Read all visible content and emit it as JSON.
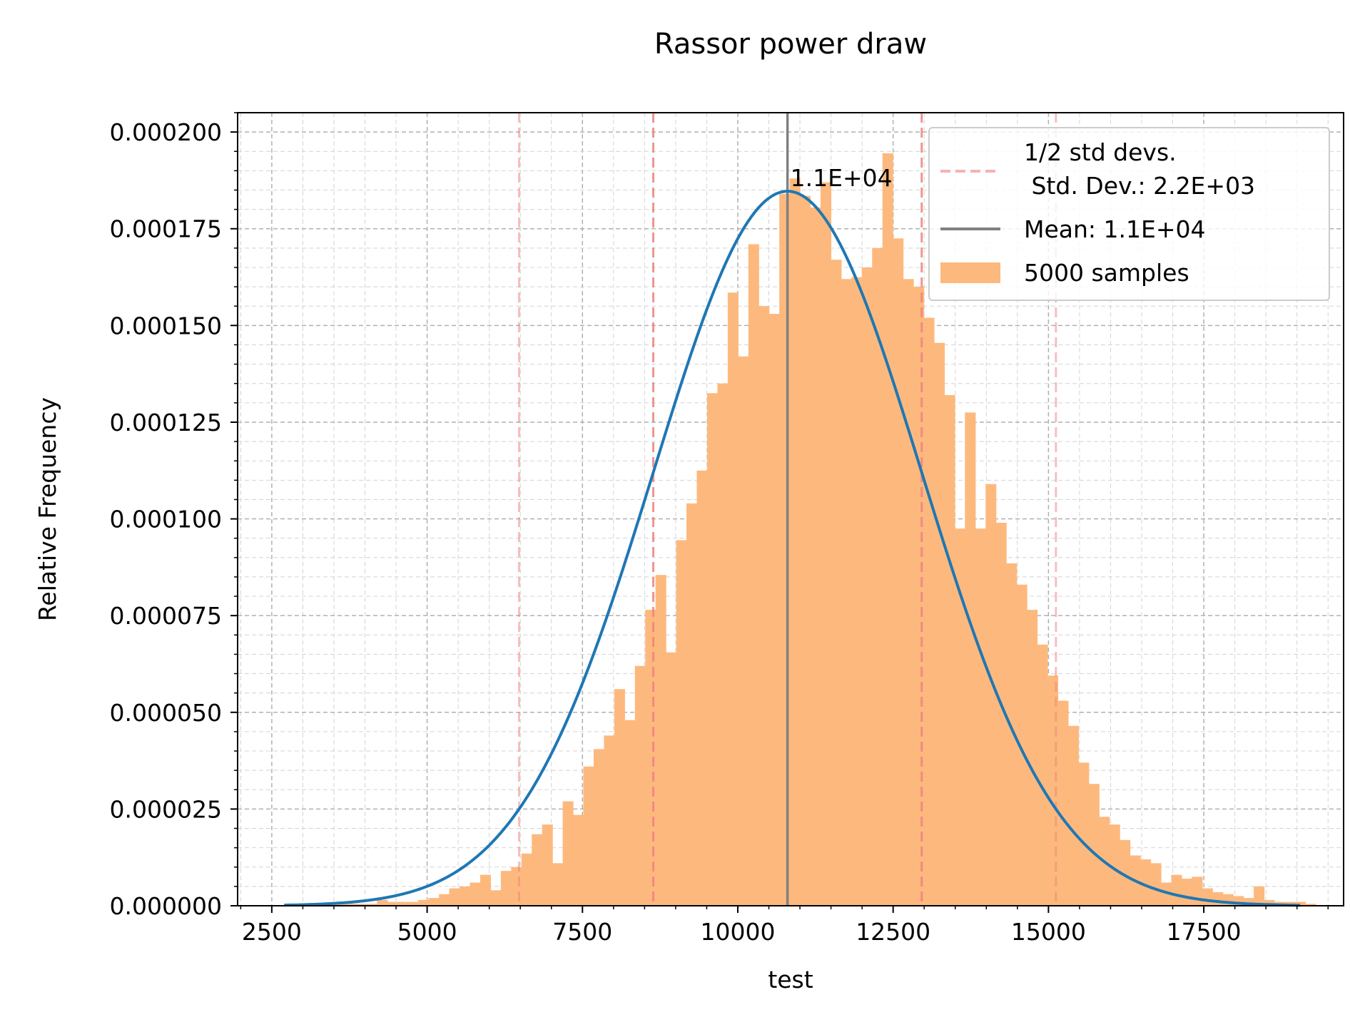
{
  "chart_data": {
    "type": "bar",
    "title": "Rassor  power draw",
    "xlabel": "test",
    "ylabel": "Relative Frequency",
    "xlim": [
      1950,
      19750
    ],
    "ylim": [
      0,
      0.000205
    ],
    "x_ticks": [
      2500,
      5000,
      7500,
      10000,
      12500,
      15000,
      17500
    ],
    "x_tick_labels": [
      "2500",
      "5000",
      "7500",
      "10000",
      "12500",
      "15000",
      "17500"
    ],
    "y_ticks": [
      0,
      2.5e-05,
      5e-05,
      7.5e-05,
      0.0001,
      0.000125,
      0.00015,
      0.000175,
      0.0002
    ],
    "y_tick_labels": [
      "0.000000",
      "0.000025",
      "0.000050",
      "0.000075",
      "0.000100",
      "0.000125",
      "0.000150",
      "0.000175",
      "0.000200"
    ],
    "grid": true,
    "legend_position": "top-right",
    "colors": {
      "histogram": "#fdb97d",
      "normal_fit": "#1f77b4",
      "mean_line": "#808080",
      "std_dev_lines": "#f08080"
    },
    "histogram": {
      "name": "5000 samples",
      "bin_start": 2700,
      "bin_width": 166,
      "values": [
        5e-07,
        5e-07,
        5e-07,
        5e-07,
        5e-07,
        5e-07,
        5e-07,
        5e-07,
        5e-07,
        1.5e-06,
        1e-06,
        1e-06,
        1e-06,
        1.5e-06,
        2e-06,
        3e-06,
        4.5e-06,
        5e-06,
        6e-06,
        8e-06,
        4e-06,
        9e-06,
        1e-05,
        1.35e-05,
        1.85e-05,
        2.1e-05,
        1.1e-05,
        2.7e-05,
        2.35e-05,
        3.6e-05,
        4.05e-05,
        4.4e-05,
        5.6e-05,
        4.8e-05,
        6.2e-05,
        7.65e-05,
        8.55e-05,
        6.55e-05,
        9.45e-05,
        0.000104,
        0.0001125,
        0.0001325,
        0.000135,
        0.0001585,
        0.000142,
        0.000171,
        0.000155,
        0.000153,
        0.000184,
        0.000188,
        0.0001835,
        0.0001805,
        0.000187,
        0.000167,
        0.000162,
        0.0001625,
        0.000165,
        0.00017,
        0.0001945,
        0.0001725,
        0.000162,
        0.00016,
        0.000152,
        0.0001455,
        0.000132,
        9.75e-05,
        0.0001275,
        9.75e-05,
        0.000109,
        9.9e-05,
        8.85e-05,
        8.3e-05,
        7.65e-05,
        6.75e-05,
        5.95e-05,
        5.3e-05,
        4.65e-05,
        3.7e-05,
        3.15e-05,
        2.3e-05,
        2.1e-05,
        1.7e-05,
        1.3e-05,
        1.2e-05,
        1.1e-05,
        6e-06,
        8e-06,
        7e-06,
        7.5e-06,
        4.5e-06,
        3.5e-06,
        3e-06,
        2.5e-06,
        2e-06,
        5e-06,
        1.5e-06,
        1e-06,
        1e-06,
        1e-06,
        5e-07
      ]
    },
    "normal_fit": {
      "mean": 10800,
      "std": 2160,
      "x_range": [
        2700,
        19050
      ]
    },
    "mean_line": {
      "x": 10800,
      "label": "Mean: 1.1E+04",
      "annotation": "1.1E+04"
    },
    "std_dev_lines": {
      "x": [
        6480,
        8640,
        12960,
        15120
      ],
      "label_line1": "1/2 std devs.",
      "label_line2": " Std. Dev.: 2.2E+03"
    },
    "legend": [
      {
        "key": "std",
        "text": "1/2 std devs.",
        "text2": " Std. Dev.: 2.2E+03"
      },
      {
        "key": "mean",
        "text": "Mean: 1.1E+04"
      },
      {
        "key": "hist",
        "text": "5000 samples"
      }
    ]
  }
}
